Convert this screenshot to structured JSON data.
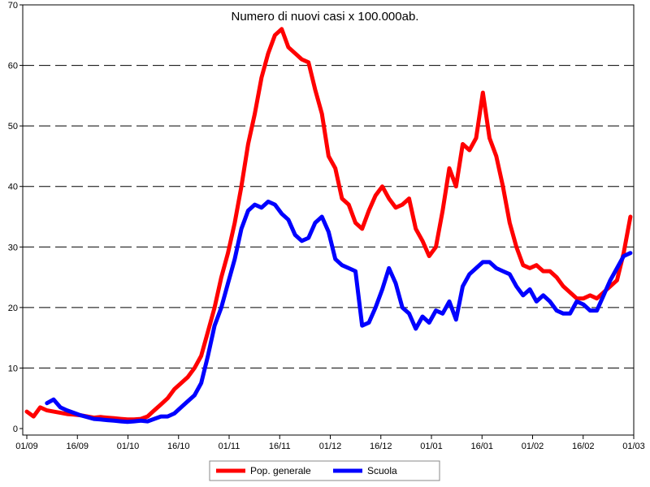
{
  "chart_data": {
    "type": "line",
    "title": "Numero di nuovi casi x 100.000ab.",
    "xlabel": "",
    "ylabel": "",
    "x_tick_labels": [
      "01/09",
      "16/09",
      "01/10",
      "16/10",
      "01/11",
      "16/11",
      "01/12",
      "16/12",
      "01/01",
      "16/01",
      "01/02",
      "16/02",
      "01/03"
    ],
    "y_ticks": [
      0,
      10,
      20,
      30,
      40,
      50,
      60,
      70
    ],
    "ylim": [
      0,
      70
    ],
    "x_start": "2020-09-01",
    "x_end": "2021-03-01",
    "grid": "horizontal dashed",
    "legend_position": "bottom-center",
    "series": [
      {
        "name": "Pop. generale",
        "color": "#ff0000",
        "points": [
          [
            "2020-09-01",
            2.8
          ],
          [
            "2020-09-03",
            2.0
          ],
          [
            "2020-09-05",
            3.5
          ],
          [
            "2020-09-07",
            3.0
          ],
          [
            "2020-09-09",
            2.8
          ],
          [
            "2020-09-11",
            2.6
          ],
          [
            "2020-09-13",
            2.4
          ],
          [
            "2020-09-15",
            2.3
          ],
          [
            "2020-09-17",
            2.2
          ],
          [
            "2020-09-19",
            2.0
          ],
          [
            "2020-09-21",
            1.8
          ],
          [
            "2020-09-23",
            1.9
          ],
          [
            "2020-09-25",
            1.8
          ],
          [
            "2020-09-27",
            1.7
          ],
          [
            "2020-09-29",
            1.6
          ],
          [
            "2020-10-01",
            1.5
          ],
          [
            "2020-10-03",
            1.5
          ],
          [
            "2020-10-05",
            1.6
          ],
          [
            "2020-10-07",
            2.0
          ],
          [
            "2020-10-09",
            3.0
          ],
          [
            "2020-10-11",
            4.0
          ],
          [
            "2020-10-13",
            5.0
          ],
          [
            "2020-10-15",
            6.5
          ],
          [
            "2020-10-17",
            7.5
          ],
          [
            "2020-10-19",
            8.5
          ],
          [
            "2020-10-21",
            10.0
          ],
          [
            "2020-10-23",
            12.0
          ],
          [
            "2020-10-25",
            16.0
          ],
          [
            "2020-10-27",
            20.0
          ],
          [
            "2020-10-29",
            25.0
          ],
          [
            "2020-10-31",
            29.0
          ],
          [
            "2020-11-02",
            34.0
          ],
          [
            "2020-11-04",
            40.0
          ],
          [
            "2020-11-06",
            47.0
          ],
          [
            "2020-11-08",
            52.0
          ],
          [
            "2020-11-10",
            58.0
          ],
          [
            "2020-11-12",
            62.0
          ],
          [
            "2020-11-14",
            65.0
          ],
          [
            "2020-11-16",
            66.0
          ],
          [
            "2020-11-18",
            63.0
          ],
          [
            "2020-11-20",
            62.0
          ],
          [
            "2020-11-22",
            61.0
          ],
          [
            "2020-11-24",
            60.5
          ],
          [
            "2020-11-26",
            56.0
          ],
          [
            "2020-11-28",
            52.0
          ],
          [
            "2020-11-30",
            45.0
          ],
          [
            "2020-12-02",
            43.0
          ],
          [
            "2020-12-04",
            38.0
          ],
          [
            "2020-12-06",
            37.0
          ],
          [
            "2020-12-08",
            34.0
          ],
          [
            "2020-12-10",
            33.0
          ],
          [
            "2020-12-12",
            36.0
          ],
          [
            "2020-12-14",
            38.5
          ],
          [
            "2020-12-16",
            40.0
          ],
          [
            "2020-12-18",
            38.0
          ],
          [
            "2020-12-20",
            36.5
          ],
          [
            "2020-12-22",
            37.0
          ],
          [
            "2020-12-24",
            38.0
          ],
          [
            "2020-12-26",
            33.0
          ],
          [
            "2020-12-28",
            31.0
          ],
          [
            "2020-12-30",
            28.5
          ],
          [
            "2021-01-01",
            30.0
          ],
          [
            "2021-01-03",
            36.0
          ],
          [
            "2021-01-05",
            43.0
          ],
          [
            "2021-01-07",
            40.0
          ],
          [
            "2021-01-09",
            47.0
          ],
          [
            "2021-01-11",
            46.0
          ],
          [
            "2021-01-13",
            48.0
          ],
          [
            "2021-01-15",
            55.5
          ],
          [
            "2021-01-17",
            48.0
          ],
          [
            "2021-01-19",
            45.0
          ],
          [
            "2021-01-21",
            40.0
          ],
          [
            "2021-01-23",
            34.0
          ],
          [
            "2021-01-25",
            30.0
          ],
          [
            "2021-01-27",
            27.0
          ],
          [
            "2021-01-29",
            26.5
          ],
          [
            "2021-01-31",
            27.0
          ],
          [
            "2021-02-02",
            26.0
          ],
          [
            "2021-02-04",
            26.0
          ],
          [
            "2021-02-06",
            25.0
          ],
          [
            "2021-02-08",
            23.5
          ],
          [
            "2021-02-10",
            22.5
          ],
          [
            "2021-02-12",
            21.5
          ],
          [
            "2021-02-14",
            21.5
          ],
          [
            "2021-02-16",
            22.0
          ],
          [
            "2021-02-18",
            21.5
          ],
          [
            "2021-02-20",
            22.5
          ],
          [
            "2021-02-22",
            23.5
          ],
          [
            "2021-02-24",
            24.5
          ],
          [
            "2021-02-26",
            29.0
          ],
          [
            "2021-02-28",
            35.0
          ]
        ]
      },
      {
        "name": "Scuola",
        "color": "#0000ff",
        "points": [
          [
            "2020-09-07",
            4.2
          ],
          [
            "2020-09-09",
            4.8
          ],
          [
            "2020-09-11",
            3.5
          ],
          [
            "2020-09-13",
            3.0
          ],
          [
            "2020-09-15",
            2.6
          ],
          [
            "2020-09-17",
            2.2
          ],
          [
            "2020-09-19",
            1.9
          ],
          [
            "2020-09-21",
            1.6
          ],
          [
            "2020-09-23",
            1.5
          ],
          [
            "2020-09-25",
            1.4
          ],
          [
            "2020-09-27",
            1.3
          ],
          [
            "2020-09-29",
            1.2
          ],
          [
            "2020-10-01",
            1.1
          ],
          [
            "2020-10-03",
            1.2
          ],
          [
            "2020-10-05",
            1.3
          ],
          [
            "2020-10-07",
            1.2
          ],
          [
            "2020-10-09",
            1.6
          ],
          [
            "2020-10-11",
            2.0
          ],
          [
            "2020-10-13",
            2.0
          ],
          [
            "2020-10-15",
            2.5
          ],
          [
            "2020-10-17",
            3.5
          ],
          [
            "2020-10-19",
            4.5
          ],
          [
            "2020-10-21",
            5.5
          ],
          [
            "2020-10-23",
            7.5
          ],
          [
            "2020-10-25",
            12.0
          ],
          [
            "2020-10-27",
            17.0
          ],
          [
            "2020-10-29",
            20.0
          ],
          [
            "2020-10-31",
            24.0
          ],
          [
            "2020-11-02",
            28.0
          ],
          [
            "2020-11-04",
            33.0
          ],
          [
            "2020-11-06",
            36.0
          ],
          [
            "2020-11-08",
            37.0
          ],
          [
            "2020-11-10",
            36.5
          ],
          [
            "2020-11-12",
            37.5
          ],
          [
            "2020-11-14",
            37.0
          ],
          [
            "2020-11-16",
            35.5
          ],
          [
            "2020-11-18",
            34.5
          ],
          [
            "2020-11-20",
            32.0
          ],
          [
            "2020-11-22",
            31.0
          ],
          [
            "2020-11-24",
            31.5
          ],
          [
            "2020-11-26",
            34.0
          ],
          [
            "2020-11-28",
            35.0
          ],
          [
            "2020-11-30",
            32.5
          ],
          [
            "2020-12-02",
            28.0
          ],
          [
            "2020-12-04",
            27.0
          ],
          [
            "2020-12-06",
            26.5
          ],
          [
            "2020-12-08",
            26.0
          ],
          [
            "2020-12-10",
            17.0
          ],
          [
            "2020-12-12",
            17.5
          ],
          [
            "2020-12-14",
            20.0
          ],
          [
            "2020-12-16",
            23.0
          ],
          [
            "2020-12-18",
            26.5
          ],
          [
            "2020-12-20",
            24.0
          ],
          [
            "2020-12-22",
            20.0
          ],
          [
            "2020-12-24",
            19.0
          ],
          [
            "2020-12-26",
            16.5
          ],
          [
            "2020-12-28",
            18.5
          ],
          [
            "2020-12-30",
            17.5
          ],
          [
            "2021-01-01",
            19.5
          ],
          [
            "2021-01-03",
            19.0
          ],
          [
            "2021-01-05",
            21.0
          ],
          [
            "2021-01-07",
            18.0
          ],
          [
            "2021-01-09",
            23.5
          ],
          [
            "2021-01-11",
            25.5
          ],
          [
            "2021-01-13",
            26.5
          ],
          [
            "2021-01-15",
            27.5
          ],
          [
            "2021-01-17",
            27.5
          ],
          [
            "2021-01-19",
            26.5
          ],
          [
            "2021-01-21",
            26.0
          ],
          [
            "2021-01-23",
            25.5
          ],
          [
            "2021-01-25",
            23.5
          ],
          [
            "2021-01-27",
            22.0
          ],
          [
            "2021-01-29",
            23.0
          ],
          [
            "2021-01-31",
            21.0
          ],
          [
            "2021-02-02",
            22.0
          ],
          [
            "2021-02-04",
            21.0
          ],
          [
            "2021-02-06",
            19.5
          ],
          [
            "2021-02-08",
            19.0
          ],
          [
            "2021-02-10",
            19.0
          ],
          [
            "2021-02-12",
            21.0
          ],
          [
            "2021-02-14",
            20.5
          ],
          [
            "2021-02-16",
            19.5
          ],
          [
            "2021-02-18",
            19.5
          ],
          [
            "2021-02-20",
            22.0
          ],
          [
            "2021-02-22",
            24.5
          ],
          [
            "2021-02-24",
            26.5
          ],
          [
            "2021-02-26",
            28.5
          ],
          [
            "2021-02-28",
            29.0
          ]
        ]
      }
    ]
  }
}
